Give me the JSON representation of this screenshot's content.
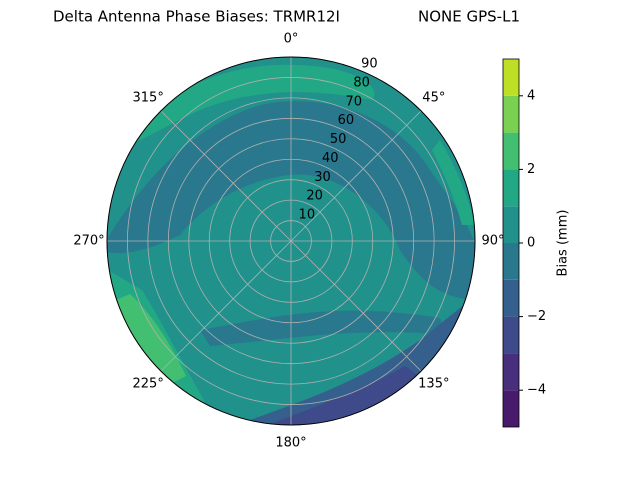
{
  "chart_data": {
    "type": "polar-contour",
    "title": "Delta Antenna Phase Biases: TRMR12I",
    "subtitle": "NONE GPS-L1",
    "theta_ticks": [
      {
        "value": 0,
        "label": "0°"
      },
      {
        "value": 45,
        "label": "45°"
      },
      {
        "value": 90,
        "label": "90°"
      },
      {
        "value": 135,
        "label": "135°"
      },
      {
        "value": 180,
        "label": "180°"
      },
      {
        "value": 225,
        "label": "225°"
      },
      {
        "value": 270,
        "label": "270°"
      },
      {
        "value": 315,
        "label": "315°"
      }
    ],
    "rlim": [
      0,
      90
    ],
    "rticks": [
      10,
      20,
      30,
      40,
      50,
      60,
      70,
      80,
      90
    ],
    "levels": [
      -5,
      -4,
      -3,
      -2,
      -1,
      0,
      1,
      2,
      3,
      4,
      5
    ],
    "colors": [
      "#481a6c",
      "#472f7d",
      "#3e4a89",
      "#35608d",
      "#2a788e",
      "#21918c",
      "#22a884",
      "#43bf71",
      "#7ad151",
      "#bddf26"
    ],
    "colorbar_label": "Bias (mm)",
    "cticks": [
      {
        "value": -4,
        "label": "−4"
      },
      {
        "value": -2,
        "label": "−2"
      },
      0,
      2,
      4
    ],
    "grid": true
  }
}
